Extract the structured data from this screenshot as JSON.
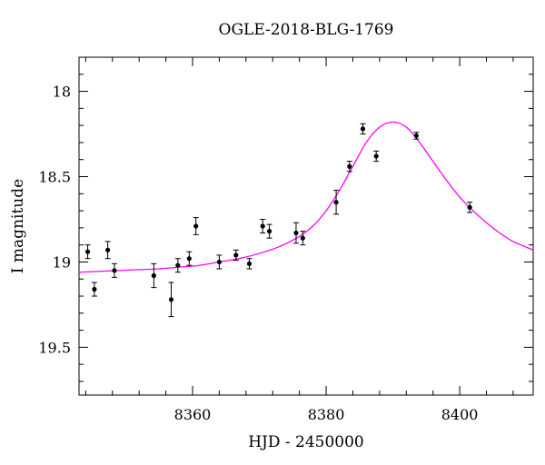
{
  "chart_data": {
    "type": "scatter",
    "title": "OGLE-2018-BLG-1769",
    "xlabel": "HJD - 2450000",
    "ylabel": "I magnitude",
    "xlim": [
      8343,
      8411
    ],
    "ylim": [
      19.78,
      17.8
    ],
    "y_inverted": true,
    "grid": false,
    "x_ticks": [
      8360,
      8380,
      8400
    ],
    "y_ticks": [
      18,
      18.5,
      19,
      19.5
    ],
    "x_tick_labels": [
      "8360",
      "8380",
      "8400"
    ],
    "y_tick_labels": [
      "18",
      "18.5",
      "19",
      "19.5"
    ],
    "colors": {
      "points": "#000000",
      "model": "#ff00ff"
    },
    "points": [
      {
        "x": 8344.3,
        "y": 18.94,
        "err": 0.04
      },
      {
        "x": 8345.3,
        "y": 19.16,
        "err": 0.04
      },
      {
        "x": 8347.3,
        "y": 18.93,
        "err": 0.05
      },
      {
        "x": 8348.3,
        "y": 19.05,
        "err": 0.04
      },
      {
        "x": 8354.2,
        "y": 19.08,
        "err": 0.07
      },
      {
        "x": 8356.8,
        "y": 19.22,
        "err": 0.1
      },
      {
        "x": 8357.8,
        "y": 19.02,
        "err": 0.04
      },
      {
        "x": 8359.5,
        "y": 18.98,
        "err": 0.04
      },
      {
        "x": 8360.5,
        "y": 18.79,
        "err": 0.05
      },
      {
        "x": 8364.0,
        "y": 19.0,
        "err": 0.04
      },
      {
        "x": 8366.5,
        "y": 18.96,
        "err": 0.03
      },
      {
        "x": 8368.5,
        "y": 19.01,
        "err": 0.03
      },
      {
        "x": 8370.5,
        "y": 18.79,
        "err": 0.04
      },
      {
        "x": 8371.5,
        "y": 18.82,
        "err": 0.04
      },
      {
        "x": 8375.5,
        "y": 18.83,
        "err": 0.06
      },
      {
        "x": 8376.5,
        "y": 18.86,
        "err": 0.04
      },
      {
        "x": 8381.5,
        "y": 18.65,
        "err": 0.07
      },
      {
        "x": 8383.5,
        "y": 18.44,
        "err": 0.03
      },
      {
        "x": 8385.5,
        "y": 18.22,
        "err": 0.03
      },
      {
        "x": 8387.5,
        "y": 18.38,
        "err": 0.03
      },
      {
        "x": 8393.5,
        "y": 18.26,
        "err": 0.02
      },
      {
        "x": 8401.5,
        "y": 18.68,
        "err": 0.03
      }
    ],
    "model_curve": {
      "x": [
        8343,
        8346,
        8349,
        8352,
        8355,
        8358,
        8361,
        8364,
        8367,
        8370,
        8373,
        8376,
        8378,
        8380,
        8382,
        8384,
        8386,
        8388,
        8390,
        8392,
        8394,
        8396,
        8398,
        8400,
        8402,
        8404,
        8406,
        8408,
        8411
      ],
      "y": [
        19.06,
        19.055,
        19.05,
        19.045,
        19.04,
        19.03,
        19.02,
        19.0,
        18.98,
        18.95,
        18.91,
        18.85,
        18.79,
        18.7,
        18.58,
        18.44,
        18.3,
        18.21,
        18.18,
        18.21,
        18.3,
        18.41,
        18.52,
        18.62,
        18.7,
        18.77,
        18.83,
        18.88,
        18.93
      ]
    }
  }
}
